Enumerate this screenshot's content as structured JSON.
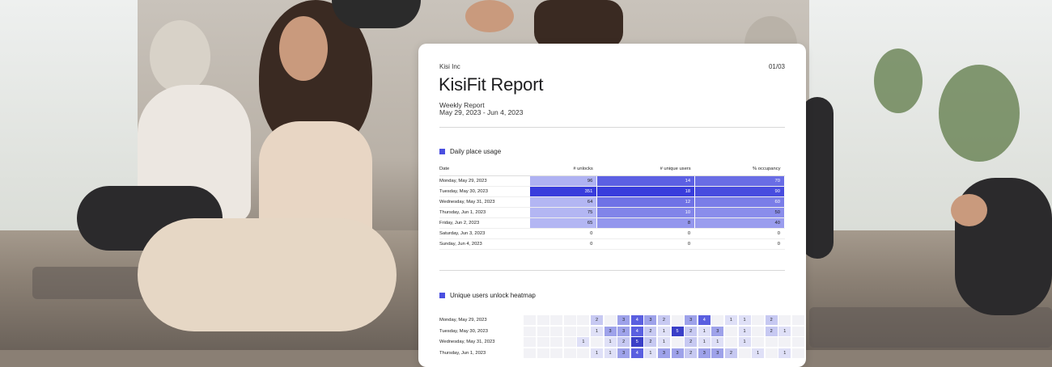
{
  "report": {
    "company": "Kisi Inc",
    "page": "01/03",
    "title": "KisiFit Report",
    "subtitle": "Weekly Report",
    "date_range": "May 29, 2023 - Jun 4, 2023"
  },
  "usage": {
    "section_title": "Daily place usage",
    "headers": [
      "Date",
      "# unlocks",
      "# unique users",
      "% occupancy"
    ],
    "rows": [
      {
        "date": "Monday, May 29, 2023",
        "unlocks": "96",
        "users": "14",
        "occupancy": "70"
      },
      {
        "date": "Tuesday, May 30, 2023",
        "unlocks": "351",
        "users": "18",
        "occupancy": "90"
      },
      {
        "date": "Wednesday, May 31, 2023",
        "unlocks": "64",
        "users": "12",
        "occupancy": "60"
      },
      {
        "date": "Thursday, Jun 1, 2023",
        "unlocks": "75",
        "users": "10",
        "occupancy": "50"
      },
      {
        "date": "Friday, Jun 2, 2023",
        "unlocks": "65",
        "users": "8",
        "occupancy": "40"
      },
      {
        "date": "Saturday, Jun 3, 2023",
        "unlocks": "0",
        "users": "0",
        "occupancy": "0"
      },
      {
        "date": "Sunday, Jun 4, 2023",
        "unlocks": "0",
        "users": "0",
        "occupancy": "0"
      }
    ]
  },
  "heatmap": {
    "section_title": "Unique users unlock heatmap",
    "rows": [
      {
        "date": "Monday, May 29, 2023",
        "cells": [
          "",
          "",
          "",
          "",
          "",
          "2",
          "",
          "3",
          "4",
          "3",
          "2",
          "",
          "3",
          "4",
          "",
          "1",
          "1",
          "",
          "2",
          "",
          ""
        ]
      },
      {
        "date": "Tuesday, May 30, 2023",
        "cells": [
          "",
          "",
          "",
          "",
          "",
          "1",
          "3",
          "3",
          "4",
          "2",
          "1",
          "5",
          "2",
          "1",
          "3",
          "",
          "1",
          "",
          "2",
          "1",
          ""
        ]
      },
      {
        "date": "Wednesday, May 31, 2023",
        "cells": [
          "",
          "",
          "",
          "",
          "1",
          "",
          "1",
          "2",
          "5",
          "2",
          "1",
          "",
          "2",
          "1",
          "1",
          "",
          "1",
          "",
          "",
          "",
          ""
        ]
      },
      {
        "date": "Thursday, Jun 1, 2023",
        "cells": [
          "",
          "",
          "",
          "",
          "",
          "1",
          "1",
          "3",
          "4",
          "1",
          "3",
          "3",
          "2",
          "3",
          "3",
          "2",
          "",
          "1",
          "",
          "1",
          ""
        ]
      }
    ]
  },
  "colors": {
    "accent": "#4a4fe0",
    "card_bg": "#ffffff"
  }
}
